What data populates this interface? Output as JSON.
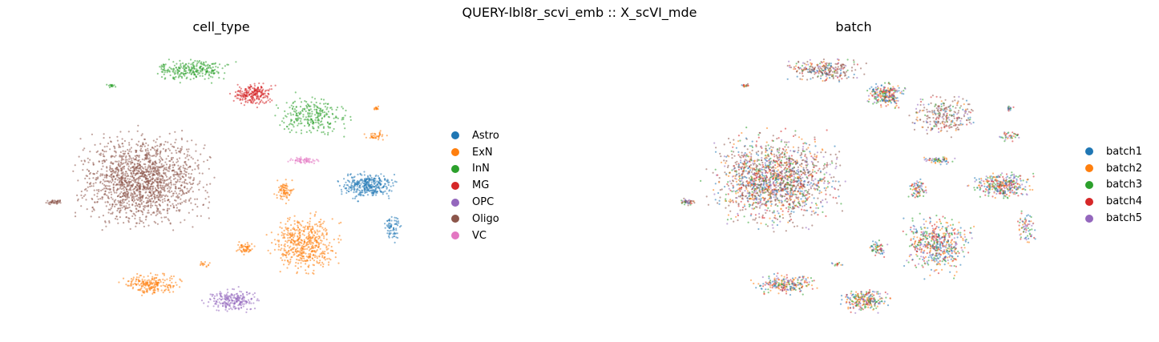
{
  "figure": {
    "suptitle": "QUERY-lbl8r_scvi_emb :: X_scVI_mde"
  },
  "chart_data": [
    {
      "type": "scatter",
      "title": "cell_type",
      "legend_placement": "right",
      "grid": false,
      "axes_visible": false,
      "categories": [
        {
          "name": "Astro",
          "color": "#1f77b4"
        },
        {
          "name": "ExN",
          "color": "#ff7f0e"
        },
        {
          "name": "InN",
          "color": "#2ca02c"
        },
        {
          "name": "MG",
          "color": "#d62728"
        },
        {
          "name": "OPC",
          "color": "#9467bd"
        },
        {
          "name": "Oligo",
          "color": "#8c564b"
        },
        {
          "name": "VC",
          "color": "#e377c2"
        }
      ]
    },
    {
      "type": "scatter",
      "title": "batch",
      "legend_placement": "right",
      "grid": false,
      "axes_visible": false,
      "categories": [
        {
          "name": "batch1",
          "color": "#1f77b4"
        },
        {
          "name": "batch2",
          "color": "#ff7f0e"
        },
        {
          "name": "batch3",
          "color": "#2ca02c"
        },
        {
          "name": "batch4",
          "color": "#d62728"
        },
        {
          "name": "batch5",
          "color": "#9467bd"
        }
      ]
    }
  ]
}
